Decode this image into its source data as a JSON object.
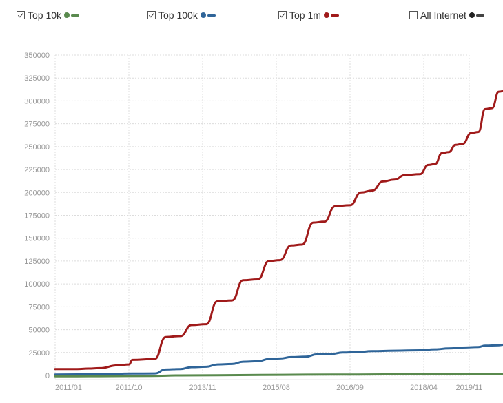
{
  "legend": [
    {
      "label": "Top 10k",
      "checked": true,
      "color": "#5a8a4e"
    },
    {
      "label": "Top 100k",
      "checked": true,
      "color": "#2f6599"
    },
    {
      "label": "Top 1m",
      "checked": true,
      "color": "#a01a1a"
    },
    {
      "label": "All Internet",
      "checked": false,
      "color": "#222222"
    }
  ],
  "chart_data": {
    "type": "line",
    "title": "",
    "xlabel": "",
    "ylabel": "",
    "ylim": [
      0,
      350000
    ],
    "yticks": [
      "0",
      "25000",
      "50000",
      "75000",
      "100000",
      "125000",
      "150000",
      "175000",
      "200000",
      "225000",
      "250000",
      "275000",
      "300000",
      "325000",
      "350000"
    ],
    "xticks": [
      "2011/01",
      "2011/10",
      "2013/11",
      "2015/08",
      "2016/09",
      "2018/04",
      "2019/11"
    ],
    "grid": true,
    "legend_position": "top",
    "series": [
      {
        "name": "Top 1m",
        "color": "#a01a1a",
        "points": [
          [
            0,
            7000
          ],
          [
            0.3,
            7000
          ],
          [
            0.45,
            7500
          ],
          [
            0.6,
            8000
          ],
          [
            0.85,
            11000
          ],
          [
            1.0,
            12000
          ],
          [
            1.05,
            17000
          ],
          [
            1.35,
            18000
          ],
          [
            1.5,
            42000
          ],
          [
            1.7,
            43000
          ],
          [
            1.85,
            55000
          ],
          [
            2.05,
            56000
          ],
          [
            2.2,
            81000
          ],
          [
            2.4,
            82000
          ],
          [
            2.55,
            104000
          ],
          [
            2.75,
            105000
          ],
          [
            2.9,
            125000
          ],
          [
            3.05,
            126000
          ],
          [
            3.2,
            142000
          ],
          [
            3.35,
            143000
          ],
          [
            3.5,
            167000
          ],
          [
            3.65,
            168000
          ],
          [
            3.8,
            185000
          ],
          [
            4.0,
            186000
          ],
          [
            4.15,
            200000
          ],
          [
            4.3,
            202000
          ],
          [
            4.45,
            212000
          ],
          [
            4.6,
            214000
          ],
          [
            4.75,
            219000
          ],
          [
            4.95,
            220000
          ],
          [
            5.1,
            230000
          ],
          [
            5.25,
            231000
          ],
          [
            5.4,
            243000
          ],
          [
            5.55,
            244000
          ],
          [
            5.7,
            252000
          ],
          [
            5.85,
            253000
          ],
          [
            6.05,
            265000
          ],
          [
            6.2,
            266000
          ],
          [
            6.35,
            291000
          ],
          [
            6.5,
            292000
          ],
          [
            6.65,
            310000
          ],
          [
            6.8,
            311000
          ],
          [
            6.95,
            324000
          ],
          [
            7.1,
            326000
          ],
          [
            7.25,
            341000
          ]
        ]
      },
      {
        "name": "Top 100k",
        "color": "#2f6599",
        "points": [
          [
            0,
            1000
          ],
          [
            0.6,
            1200
          ],
          [
            1.05,
            2000
          ],
          [
            1.35,
            2200
          ],
          [
            1.5,
            6500
          ],
          [
            1.7,
            7000
          ],
          [
            1.85,
            9000
          ],
          [
            2.05,
            9500
          ],
          [
            2.2,
            12000
          ],
          [
            2.4,
            12500
          ],
          [
            2.55,
            15000
          ],
          [
            2.75,
            15500
          ],
          [
            2.9,
            18000
          ],
          [
            3.05,
            18500
          ],
          [
            3.2,
            20000
          ],
          [
            3.4,
            20500
          ],
          [
            3.55,
            23000
          ],
          [
            3.75,
            23500
          ],
          [
            3.9,
            25000
          ],
          [
            4.1,
            25500
          ],
          [
            4.3,
            26500
          ],
          [
            4.6,
            27000
          ],
          [
            4.95,
            27500
          ],
          [
            5.25,
            28500
          ],
          [
            5.55,
            29500
          ],
          [
            5.85,
            30500
          ],
          [
            6.2,
            31000
          ],
          [
            6.35,
            32500
          ],
          [
            6.65,
            33000
          ],
          [
            6.8,
            33800
          ],
          [
            7.0,
            34000
          ],
          [
            7.25,
            34000
          ]
        ]
      },
      {
        "name": "Top 10k",
        "color": "#5a8a4e",
        "points": [
          [
            0,
            -1000
          ],
          [
            0.6,
            -800
          ],
          [
            1.3,
            -500
          ],
          [
            1.7,
            0
          ],
          [
            2.2,
            200
          ],
          [
            2.8,
            500
          ],
          [
            3.4,
            800
          ],
          [
            4.1,
            1000
          ],
          [
            4.8,
            1200
          ],
          [
            5.5,
            1400
          ],
          [
            6.3,
            1700
          ],
          [
            7.0,
            1900
          ],
          [
            7.25,
            2000
          ]
        ]
      }
    ]
  }
}
